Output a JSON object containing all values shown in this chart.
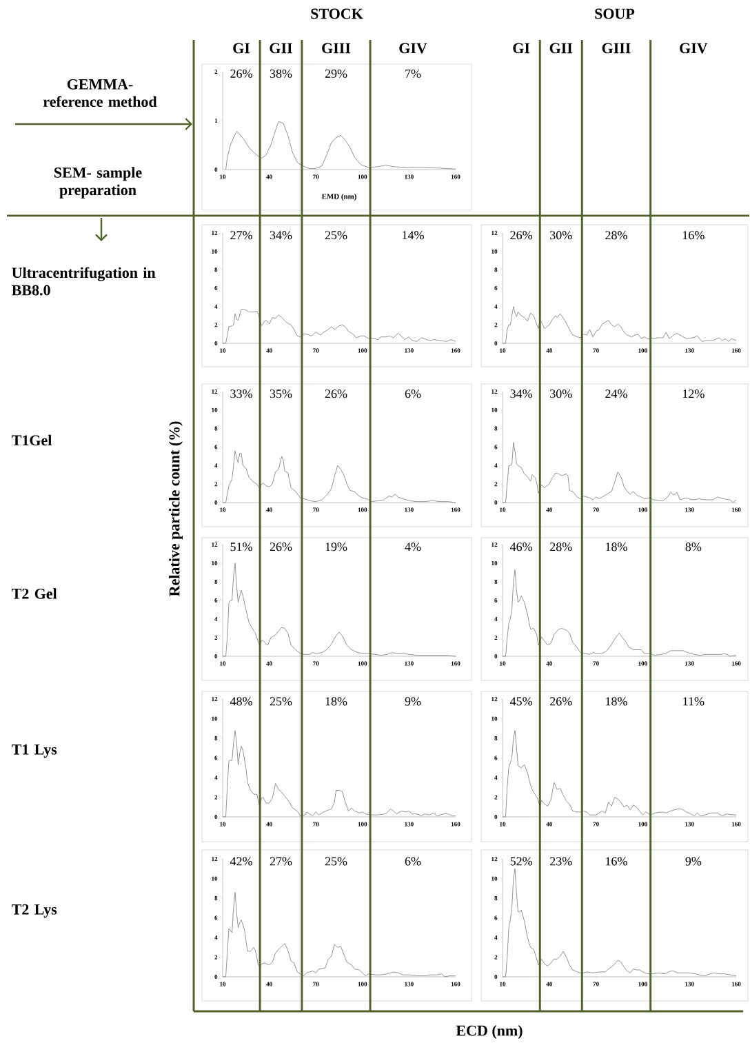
{
  "chart_data": [
    {
      "type": "line",
      "title": "GEMMA- reference method",
      "subtitle": "SEM- sample preparation",
      "xlabel": "EMD (nm)",
      "color": "#8c8c8c",
      "xlim": [
        10,
        160
      ],
      "ylim": [
        0,
        2
      ],
      "xticks": [
        10,
        40,
        70,
        100,
        130,
        160
      ],
      "yticks": [
        0,
        1,
        2
      ],
      "ref_lines": [
        {
          "axis": "x",
          "value": 34,
          "color": "#4f6228"
        },
        {
          "axis": "x",
          "value": 61,
          "color": "#4f6228"
        },
        {
          "axis": "x",
          "value": 105,
          "color": "#4f6228"
        }
      ],
      "annotations": [
        "26%",
        "38%",
        "29%",
        "7%",
        "STOCK",
        "GI",
        "GII",
        "GIII",
        "GIV"
      ],
      "x": [
        12,
        13,
        15,
        17,
        19,
        21,
        24,
        27,
        30,
        33,
        35,
        38,
        41,
        44,
        46,
        49,
        52,
        55,
        58,
        62,
        66,
        70,
        74,
        77,
        80,
        83,
        86,
        89,
        92,
        95,
        99,
        104,
        110,
        115,
        120,
        130,
        140,
        150,
        160
      ],
      "values": [
        0,
        0.25,
        0.5,
        0.65,
        0.78,
        0.72,
        0.6,
        0.45,
        0.35,
        0.27,
        0.23,
        0.3,
        0.5,
        0.8,
        0.98,
        0.95,
        0.7,
        0.35,
        0.15,
        0.07,
        0.02,
        0.02,
        0.08,
        0.3,
        0.55,
        0.65,
        0.7,
        0.6,
        0.45,
        0.25,
        0.1,
        0.04,
        0.06,
        0.09,
        0.06,
        0.04,
        0.04,
        0.03,
        0.01
      ]
    },
    {
      "type": "line",
      "color": "#8c8c8c",
      "xlim": [
        10,
        160
      ],
      "ylim": [
        0,
        12
      ],
      "xticks": [
        10,
        40,
        70,
        100,
        130,
        160
      ],
      "yticks": [
        0,
        2,
        4,
        6,
        8,
        10,
        12
      ],
      "ref_lines": [
        {
          "axis": "x",
          "value": 34,
          "color": "#4f6228"
        },
        {
          "axis": "x",
          "value": 61,
          "color": "#4f6228"
        },
        {
          "axis": "x",
          "value": 105,
          "color": "#4f6228"
        }
      ],
      "annotations": [
        "27%",
        "34%",
        "25%",
        "14%"
      ],
      "x": [
        10,
        12,
        14,
        16,
        17,
        18,
        19,
        20,
        22,
        24,
        27,
        30,
        32,
        33,
        35,
        37,
        38,
        40,
        42,
        44,
        46,
        48,
        51,
        54,
        56,
        58,
        60,
        62,
        64,
        67,
        70,
        73,
        75,
        78,
        80,
        82,
        85,
        87,
        89,
        91,
        94,
        96,
        99,
        101,
        104,
        108,
        110,
        112,
        115,
        118,
        120,
        123,
        125,
        127,
        130,
        132,
        135,
        138,
        140,
        143,
        146,
        150,
        154,
        157,
        160
      ],
      "values": [
        0,
        0,
        1.8,
        1.9,
        2,
        3.2,
        2.6,
        2.5,
        3.7,
        3.7,
        3.4,
        3.4,
        3.5,
        3.2,
        1.9,
        2.4,
        2.5,
        2.1,
        2.8,
        2.7,
        3.1,
        2.8,
        2.3,
        2,
        1.5,
        0.8,
        0.7,
        1,
        1,
        0.8,
        1.2,
        0.9,
        1.2,
        1.5,
        1.8,
        1.5,
        1.9,
        2,
        1.8,
        1.3,
        1,
        0.6,
        0.8,
        0.8,
        0.5,
        0.5,
        0.4,
        0.7,
        0.7,
        0.8,
        0.6,
        1.1,
        0.8,
        0.4,
        0.7,
        0.3,
        0.2,
        0.6,
        0.5,
        0.3,
        0.4,
        0.3,
        0.2,
        0.4,
        0.2
      ]
    },
    {
      "type": "line",
      "color": "#8c8c8c",
      "xlim": [
        10,
        160
      ],
      "ylim": [
        0,
        12
      ],
      "xticks": [
        10,
        40,
        70,
        100,
        130,
        160
      ],
      "yticks": [
        0,
        2,
        4,
        6,
        8,
        10,
        12
      ],
      "ref_lines": [
        {
          "axis": "x",
          "value": 34,
          "color": "#4f6228"
        },
        {
          "axis": "x",
          "value": 61,
          "color": "#4f6228"
        },
        {
          "axis": "x",
          "value": 105,
          "color": "#4f6228"
        }
      ],
      "annotations": [
        "26%",
        "30%",
        "28%",
        "16%",
        "SOUP",
        "GI",
        "GII",
        "GIII",
        "GIV"
      ],
      "x": [
        10,
        12,
        13,
        14,
        15,
        17,
        18,
        19,
        20,
        22,
        24,
        26,
        28,
        30,
        32,
        33,
        34,
        35,
        37,
        40,
        42,
        44,
        45,
        47,
        50,
        53,
        55,
        58,
        60,
        62,
        64,
        66,
        68,
        70,
        72,
        74,
        76,
        78,
        80,
        82,
        84,
        86,
        88,
        90,
        93,
        95,
        97,
        99,
        101,
        103,
        106,
        110,
        113,
        115,
        117,
        120,
        122,
        125,
        128,
        132,
        135,
        138,
        141,
        145,
        149,
        151,
        153,
        155,
        157,
        160
      ],
      "values": [
        0,
        0,
        1.5,
        2,
        2,
        4,
        3.3,
        2.9,
        3.4,
        3,
        2.8,
        2.4,
        3.3,
        3,
        2,
        1.6,
        2.5,
        2.3,
        1.6,
        2,
        2.6,
        3,
        2.8,
        3.2,
        2.5,
        1.5,
        0.9,
        0.7,
        0.6,
        1,
        0.9,
        1.5,
        0.7,
        1.3,
        1.5,
        2.1,
        2.3,
        2.5,
        2,
        1.8,
        2.1,
        1.8,
        1.2,
        0.9,
        0.7,
        0.9,
        1,
        0.5,
        0.7,
        0.5,
        0.5,
        0.6,
        0.6,
        1.2,
        0.5,
        0.9,
        1.1,
        0.8,
        0.5,
        0.6,
        0.8,
        0.2,
        0.3,
        0.3,
        0.6,
        0.3,
        0.5,
        0.2,
        0.5,
        0.3
      ]
    },
    {
      "type": "line",
      "ylabel": "Relative particle count (%)",
      "color": "#8c8c8c",
      "xlim": [
        10,
        160
      ],
      "ylim": [
        0,
        12
      ],
      "xticks": [
        10,
        40,
        70,
        100,
        130,
        160
      ],
      "yticks": [
        0,
        2,
        4,
        6,
        8,
        10,
        12
      ],
      "ref_lines": [
        {
          "axis": "x",
          "value": 34,
          "color": "#4f6228"
        },
        {
          "axis": "x",
          "value": 61,
          "color": "#4f6228"
        },
        {
          "axis": "x",
          "value": 105,
          "color": "#4f6228"
        }
      ],
      "annotations": [
        "33%",
        "35%",
        "26%",
        "6%"
      ],
      "x": [
        10,
        12,
        14,
        16,
        17,
        18,
        19,
        20,
        21,
        22,
        23,
        25,
        27,
        30,
        32,
        34,
        35,
        36,
        38,
        40,
        42,
        44,
        46,
        48,
        49,
        50,
        52,
        54,
        57,
        60,
        63,
        66,
        70,
        74,
        77,
        80,
        82,
        84,
        86,
        88,
        90,
        92,
        95,
        97,
        100,
        103,
        106,
        110,
        114,
        117,
        119,
        121,
        123,
        126,
        130,
        135,
        140,
        145,
        150,
        155,
        160
      ],
      "values": [
        0,
        0,
        1.8,
        2.5,
        4,
        5.6,
        4.8,
        4.3,
        5.3,
        5.3,
        4,
        3.7,
        2.7,
        2.2,
        2,
        1.5,
        2,
        2.1,
        1.8,
        1.7,
        2,
        3.3,
        3.6,
        5,
        4.6,
        3.4,
        3.2,
        1.6,
        1.2,
        0.5,
        0.4,
        0.2,
        0.1,
        0.3,
        0.8,
        1.5,
        2.8,
        4,
        3.6,
        3,
        2,
        1.3,
        1.2,
        0.8,
        0.5,
        0.4,
        0.1,
        0.2,
        0.3,
        0.7,
        0.6,
        0.9,
        0.6,
        0.4,
        0.2,
        0.1,
        0.1,
        0.2,
        0.1,
        0.1,
        0
      ]
    },
    {
      "type": "line",
      "color": "#8c8c8c",
      "xlim": [
        10,
        160
      ],
      "ylim": [
        0,
        12
      ],
      "xticks": [
        10,
        40,
        70,
        100,
        130,
        160
      ],
      "yticks": [
        0,
        2,
        4,
        6,
        8,
        10,
        12
      ],
      "ref_lines": [
        {
          "axis": "x",
          "value": 34,
          "color": "#4f6228"
        },
        {
          "axis": "x",
          "value": 61,
          "color": "#4f6228"
        },
        {
          "axis": "x",
          "value": 105,
          "color": "#4f6228"
        }
      ],
      "annotations": [
        "34%",
        "30%",
        "24%",
        "12%"
      ],
      "x": [
        10,
        12,
        13,
        14,
        15,
        16,
        17,
        18,
        19,
        20,
        22,
        24,
        26,
        28,
        29,
        31,
        32,
        33,
        34,
        35,
        37,
        40,
        42,
        44,
        46,
        48,
        51,
        52,
        53,
        55,
        58,
        60,
        62,
        66,
        68,
        70,
        72,
        76,
        80,
        82,
        84,
        86,
        88,
        90,
        92,
        94,
        96,
        99,
        101,
        104,
        107,
        110,
        113,
        116,
        118,
        120,
        122,
        124,
        128,
        132,
        136,
        140,
        145,
        148,
        152,
        156,
        158,
        160
      ],
      "values": [
        0,
        0,
        2,
        4,
        4,
        4.1,
        6.5,
        5.5,
        4.2,
        4,
        3.8,
        3.1,
        2.8,
        2.3,
        3,
        2.7,
        2.1,
        1,
        1.5,
        1.9,
        1.6,
        2,
        2.7,
        3.2,
        3.1,
        2.9,
        3.1,
        2.9,
        1.3,
        1.2,
        0.6,
        0.4,
        0.7,
        0.5,
        0.3,
        0.6,
        0.4,
        0.8,
        1.2,
        2.2,
        3.3,
        2.8,
        1.7,
        1.2,
        0.9,
        1.2,
        0.8,
        0.6,
        0.4,
        0.5,
        0.3,
        0.2,
        0.2,
        0.6,
        1.1,
        0.8,
        1.1,
        0.3,
        0.5,
        0.3,
        0.4,
        0.3,
        0.3,
        0.6,
        0.4,
        0.3,
        0,
        0.3
      ]
    },
    {
      "type": "line",
      "color": "#8c8c8c",
      "xlim": [
        10,
        160
      ],
      "ylim": [
        0,
        12
      ],
      "xticks": [
        10,
        40,
        70,
        100,
        130,
        160
      ],
      "yticks": [
        0,
        2,
        4,
        6,
        8,
        10,
        12
      ],
      "ref_lines": [
        {
          "axis": "x",
          "value": 34,
          "color": "#4f6228"
        },
        {
          "axis": "x",
          "value": 61,
          "color": "#4f6228"
        },
        {
          "axis": "x",
          "value": 105,
          "color": "#4f6228"
        }
      ],
      "annotations": [
        "51%",
        "26%",
        "19%",
        "4%"
      ],
      "x": [
        10,
        12,
        13,
        14,
        15,
        16,
        17,
        18,
        19,
        20,
        21,
        22,
        23,
        25,
        27,
        29,
        31,
        33,
        34,
        35,
        36,
        38,
        39,
        41,
        44,
        46,
        48,
        50,
        52,
        54,
        57,
        60,
        63,
        66,
        68,
        70,
        74,
        77,
        80,
        83,
        85,
        87,
        90,
        93,
        97,
        100,
        104,
        108,
        112,
        116,
        119,
        122,
        126,
        130,
        135,
        140,
        145,
        150,
        155,
        160
      ],
      "values": [
        0,
        0,
        2,
        5.7,
        6,
        6,
        8.5,
        10,
        7.5,
        5.8,
        6.5,
        7.1,
        6.5,
        5,
        3.6,
        3,
        2.5,
        1.5,
        1.2,
        1.7,
        1.7,
        1.3,
        1.2,
        2,
        2.3,
        2.7,
        3.1,
        3,
        2.5,
        1.2,
        0.7,
        0.3,
        0.2,
        0.2,
        0.4,
        0.3,
        0.4,
        0.7,
        1.3,
        2.2,
        2.6,
        2.2,
        1.2,
        0.7,
        0.4,
        0.3,
        0.3,
        0.2,
        0.1,
        0.2,
        0.4,
        0.3,
        0.3,
        0.2,
        0.1,
        0.1,
        0.1,
        0.1,
        0.1,
        0
      ]
    },
    {
      "type": "line",
      "color": "#8c8c8c",
      "xlim": [
        10,
        160
      ],
      "ylim": [
        0,
        12
      ],
      "xticks": [
        10,
        40,
        70,
        100,
        130,
        160
      ],
      "yticks": [
        0,
        2,
        4,
        6,
        8,
        10,
        12
      ],
      "ref_lines": [
        {
          "axis": "x",
          "value": 34,
          "color": "#4f6228"
        },
        {
          "axis": "x",
          "value": 61,
          "color": "#4f6228"
        },
        {
          "axis": "x",
          "value": 105,
          "color": "#4f6228"
        }
      ],
      "annotations": [
        "46%",
        "28%",
        "18%",
        "8%"
      ],
      "x": [
        10,
        12,
        13,
        14,
        15,
        16,
        17,
        18,
        19,
        20,
        21,
        22,
        24,
        26,
        28,
        30,
        32,
        33,
        34,
        35,
        37,
        39,
        41,
        43,
        46,
        48,
        51,
        53,
        55,
        58,
        60,
        62,
        64,
        66,
        68,
        70,
        74,
        77,
        80,
        83,
        85,
        87,
        89,
        91,
        94,
        97,
        99,
        101,
        104,
        108,
        112,
        116,
        118,
        122,
        126,
        129,
        133,
        137,
        140,
        145,
        150,
        153,
        156,
        160
      ],
      "values": [
        0,
        0,
        2,
        3.5,
        4,
        5,
        8,
        9.3,
        7,
        5.8,
        6,
        6.5,
        5.8,
        4.5,
        2.9,
        3,
        2.3,
        1.2,
        1.5,
        2.1,
        1.6,
        1.2,
        1.4,
        2.3,
        2.9,
        3,
        2.8,
        2.5,
        1.5,
        0.9,
        0.4,
        0.3,
        0.3,
        0.2,
        0.4,
        0.3,
        0.3,
        0.6,
        1.3,
        2.1,
        2.5,
        2,
        1.6,
        1,
        0.7,
        0.7,
        0.7,
        0.3,
        0.3,
        0.1,
        0.2,
        0.4,
        0.6,
        0.6,
        0.6,
        0.4,
        0.2,
        0.1,
        0.2,
        0.2,
        0.2,
        0.3,
        0,
        0.1
      ]
    },
    {
      "type": "line",
      "color": "#8c8c8c",
      "xlim": [
        10,
        160
      ],
      "ylim": [
        0,
        12
      ],
      "xticks": [
        10,
        40,
        70,
        100,
        130,
        160
      ],
      "yticks": [
        0,
        2,
        4,
        6,
        8,
        10,
        12
      ],
      "ref_lines": [
        {
          "axis": "x",
          "value": 34,
          "color": "#4f6228"
        },
        {
          "axis": "x",
          "value": 61,
          "color": "#4f6228"
        },
        {
          "axis": "x",
          "value": 105,
          "color": "#4f6228"
        }
      ],
      "annotations": [
        "48%",
        "25%",
        "18%",
        "9%"
      ],
      "x": [
        10,
        12,
        13,
        14,
        15,
        16,
        17,
        18,
        19,
        20,
        21,
        22,
        23,
        25,
        26,
        28,
        30,
        32,
        33,
        34,
        35,
        36,
        38,
        40,
        42,
        44,
        46,
        48,
        51,
        53,
        55,
        58,
        60,
        63,
        64,
        66,
        68,
        70,
        72,
        75,
        78,
        80,
        82,
        83,
        85,
        87,
        89,
        91,
        93,
        95,
        98,
        100,
        102,
        105,
        110,
        115,
        118,
        120,
        122,
        125,
        128,
        130,
        132,
        135,
        138,
        140,
        143,
        146,
        148,
        152,
        155,
        158,
        160
      ],
      "values": [
        0,
        0,
        3,
        5.7,
        5.8,
        5.7,
        7.5,
        8.8,
        7.5,
        5.3,
        6.5,
        7.2,
        6.8,
        5,
        3.5,
        2.7,
        2.3,
        2.3,
        1.6,
        1,
        1.9,
        2,
        1.4,
        1.4,
        1.9,
        3.4,
        2.8,
        2.5,
        1.9,
        1.5,
        0.9,
        0.6,
        0.1,
        0.2,
        0.5,
        0.3,
        0.1,
        0.5,
        0.2,
        0.5,
        0.7,
        0.8,
        1.5,
        2.7,
        2.7,
        2.6,
        1.5,
        0.6,
        0.9,
        0.6,
        0.4,
        0.5,
        0.3,
        0.2,
        0.2,
        0.3,
        0.8,
        0.6,
        0.3,
        0.6,
        0.5,
        0.6,
        0.3,
        0.3,
        0.1,
        0.3,
        0.2,
        0.4,
        0.1,
        0.3,
        0.3,
        0.1,
        0.1
      ]
    },
    {
      "type": "line",
      "color": "#8c8c8c",
      "xlim": [
        10,
        160
      ],
      "ylim": [
        0,
        12
      ],
      "xticks": [
        10,
        40,
        70,
        100,
        130,
        160
      ],
      "yticks": [
        0,
        2,
        4,
        6,
        8,
        10,
        12
      ],
      "ref_lines": [
        {
          "axis": "x",
          "value": 34,
          "color": "#4f6228"
        },
        {
          "axis": "x",
          "value": 61,
          "color": "#4f6228"
        },
        {
          "axis": "x",
          "value": 105,
          "color": "#4f6228"
        }
      ],
      "annotations": [
        "45%",
        "26%",
        "18%",
        "11%"
      ],
      "x": [
        10,
        12,
        13,
        14,
        15,
        16,
        17,
        18,
        19,
        20,
        22,
        24,
        26,
        28,
        30,
        32,
        33,
        34,
        35,
        37,
        39,
        41,
        43,
        45,
        47,
        49,
        51,
        53,
        55,
        58,
        60,
        62,
        64,
        66,
        70,
        74,
        76,
        78,
        80,
        82,
        84,
        86,
        88,
        90,
        92,
        94,
        96,
        98,
        100,
        102,
        105,
        108,
        112,
        115,
        118,
        122,
        125,
        128,
        131,
        133,
        135,
        137,
        140,
        144,
        148,
        151,
        154,
        158,
        160
      ],
      "values": [
        0,
        0,
        3,
        5,
        5.5,
        6,
        8,
        8.8,
        7,
        5.2,
        5,
        5.3,
        4.5,
        3.2,
        2.5,
        2,
        1.6,
        1,
        1.7,
        1.3,
        1.1,
        1.7,
        3.5,
        2.8,
        2.9,
        2.2,
        1.6,
        1.3,
        0.6,
        0.5,
        0.5,
        0.6,
        0.5,
        0.2,
        0.2,
        0.6,
        0.4,
        1.5,
        1.1,
        2,
        1.8,
        1.5,
        1,
        1.2,
        0.7,
        1.2,
        1,
        0.6,
        0.2,
        0.5,
        0.2,
        0.4,
        0.5,
        0.4,
        0.6,
        0.8,
        0.8,
        0.5,
        0.3,
        0.1,
        0.4,
        0.1,
        0.2,
        0.4,
        0.4,
        0.1,
        0.3,
        0.2,
        0.2
      ]
    },
    {
      "type": "line",
      "xlabel": "ECD (nm)",
      "color": "#8c8c8c",
      "xlim": [
        10,
        160
      ],
      "ylim": [
        0,
        12
      ],
      "xticks": [
        10,
        40,
        70,
        100,
        130,
        160
      ],
      "yticks": [
        0,
        2,
        4,
        6,
        8,
        10,
        12
      ],
      "ref_lines": [
        {
          "axis": "x",
          "value": 34,
          "color": "#4f6228"
        },
        {
          "axis": "x",
          "value": 61,
          "color": "#4f6228"
        },
        {
          "axis": "x",
          "value": 105,
          "color": "#4f6228"
        }
      ],
      "annotations": [
        "42%",
        "27%",
        "25%",
        "6%"
      ],
      "x": [
        10,
        12,
        13,
        14,
        15,
        16,
        17,
        18,
        19,
        20,
        21,
        22,
        24,
        26,
        28,
        30,
        31,
        33,
        34,
        35,
        37,
        40,
        42,
        44,
        46,
        48,
        50,
        52,
        54,
        56,
        58,
        60,
        62,
        64,
        68,
        70,
        72,
        76,
        78,
        80,
        82,
        84,
        86,
        88,
        90,
        93,
        95,
        98,
        100,
        102,
        104,
        108,
        112,
        116,
        120,
        123,
        126,
        130,
        135,
        140,
        144,
        148,
        151,
        153,
        156,
        160
      ],
      "values": [
        0,
        0,
        2.5,
        4.9,
        4.7,
        4.5,
        7,
        8.6,
        6.5,
        5,
        5.5,
        5.8,
        4.8,
        2.6,
        2.6,
        3,
        2.7,
        1.2,
        1,
        1.3,
        1.4,
        1.2,
        1.5,
        2.4,
        2.8,
        3.1,
        3.4,
        2.7,
        1.6,
        1.4,
        0.5,
        0.3,
        0.1,
        0.4,
        0.6,
        0.4,
        0.8,
        0.9,
        1.8,
        2.1,
        3.3,
        3,
        3.1,
        2.3,
        1.5,
        1.2,
        0.8,
        0.7,
        0.4,
        0.1,
        0.3,
        0.2,
        0.2,
        0.3,
        0.5,
        0.4,
        0.2,
        0.2,
        0.1,
        0.1,
        0.2,
        0.2,
        0.3,
        0,
        0.1,
        0.1
      ]
    },
    {
      "type": "line",
      "color": "#8c8c8c",
      "xlim": [
        10,
        160
      ],
      "ylim": [
        0,
        12
      ],
      "xticks": [
        10,
        40,
        70,
        100,
        130,
        160
      ],
      "yticks": [
        0,
        2,
        4,
        6,
        8,
        10,
        12
      ],
      "ref_lines": [
        {
          "axis": "x",
          "value": 34,
          "color": "#4f6228"
        },
        {
          "axis": "x",
          "value": 61,
          "color": "#4f6228"
        },
        {
          "axis": "x",
          "value": 105,
          "color": "#4f6228"
        }
      ],
      "annotations": [
        "52%",
        "23%",
        "16%",
        "9%"
      ],
      "x": [
        10,
        12,
        13,
        14,
        15,
        16,
        17,
        18,
        19,
        20,
        21,
        22,
        24,
        26,
        28,
        30,
        32,
        33,
        34,
        35,
        37,
        39,
        41,
        43,
        45,
        47,
        49,
        51,
        53,
        55,
        58,
        60,
        62,
        64,
        68,
        72,
        76,
        78,
        80,
        82,
        84,
        86,
        88,
        90,
        92,
        94,
        96,
        98,
        100,
        103,
        106,
        110,
        114,
        118,
        120,
        122,
        126,
        130,
        134,
        136,
        140,
        143,
        146,
        149,
        153,
        156,
        160
      ],
      "values": [
        0,
        0,
        2,
        5,
        5.8,
        7,
        10,
        11,
        8.5,
        6.6,
        6.6,
        6.8,
        5.7,
        4,
        3,
        2.8,
        1.8,
        1.2,
        1.5,
        1.8,
        1.3,
        1.1,
        1.4,
        1.8,
        1.8,
        2.1,
        2.6,
        2,
        1.2,
        0.7,
        0.5,
        0.4,
        0.4,
        0.5,
        0.4,
        0.5,
        0.5,
        0.8,
        1,
        1.3,
        1.7,
        1.5,
        1,
        0.6,
        0.4,
        0.8,
        0.7,
        0.7,
        0.5,
        0.3,
        0.3,
        0.4,
        0.3,
        0.6,
        0.6,
        0.4,
        0.4,
        0.4,
        0.3,
        0.2,
        0.1,
        0.3,
        0.4,
        0.3,
        0.3,
        0.2,
        0.1
      ]
    },
    {
      "type": "other",
      "annotations": [
        "Ultracentrifugation in BB8.0",
        "T1Gel",
        "T2 Gel",
        "T1 Lys",
        "T2 Lys"
      ]
    }
  ]
}
